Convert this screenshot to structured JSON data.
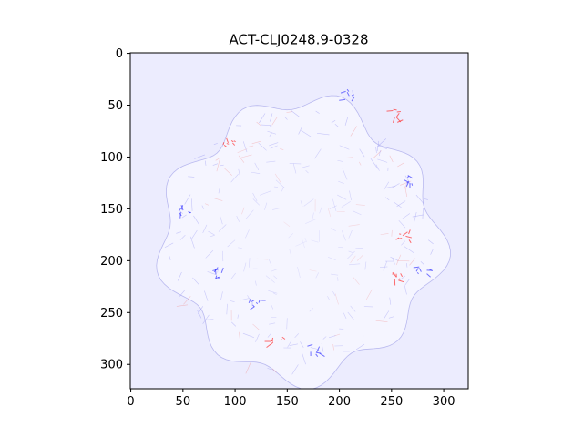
{
  "chart_data": {
    "type": "heatmap",
    "title": "ACT-CLJ0248.9-0328",
    "xlabel": "",
    "ylabel": "",
    "xlim": [
      -0.5,
      323.5
    ],
    "ylim": [
      323.5,
      -0.5
    ],
    "xticks": [
      0,
      50,
      100,
      150,
      200,
      250,
      300
    ],
    "yticks": [
      0,
      50,
      100,
      150,
      200,
      250,
      300
    ],
    "image_size": [
      324,
      324
    ],
    "colormap": "bwr",
    "background_color": "#ececfe",
    "grid": false,
    "legend": "none",
    "footprint": {
      "shape": "scalloped-circle",
      "center_x": 163,
      "center_y": 180,
      "mean_radius": 130,
      "fill_color": "#f5f5ff"
    },
    "hotspots": [
      {
        "x": 140,
        "y": 275,
        "sign": "positive"
      },
      {
        "x": 255,
        "y": 215,
        "sign": "positive"
      },
      {
        "x": 262,
        "y": 175,
        "sign": "positive"
      },
      {
        "x": 255,
        "y": 60,
        "sign": "positive"
      },
      {
        "x": 95,
        "y": 85,
        "sign": "positive"
      },
      {
        "x": 52,
        "y": 150,
        "sign": "negative"
      },
      {
        "x": 210,
        "y": 40,
        "sign": "negative"
      },
      {
        "x": 280,
        "y": 210,
        "sign": "negative"
      },
      {
        "x": 175,
        "y": 285,
        "sign": "negative"
      },
      {
        "x": 120,
        "y": 240,
        "sign": "negative"
      },
      {
        "x": 85,
        "y": 210,
        "sign": "negative"
      },
      {
        "x": 265,
        "y": 120,
        "sign": "negative"
      }
    ]
  }
}
